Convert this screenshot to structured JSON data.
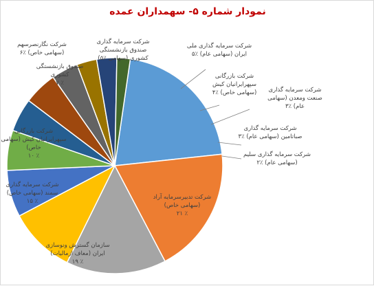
{
  "chart_data": {
    "type": "pie",
    "title": "نمودار شماره ۵- سهمداران عمده",
    "slices": [
      {
        "label": [
          "شرکت تدبیرسرمایه آراد",
          "(سهامی خاص)",
          "٪ ۲۱"
        ],
        "value": 21,
        "color": "#5b9bd5"
      },
      {
        "label": [
          "سازمان گسترش ونوسازی",
          "ایران (معاف ازمالیات)",
          "٪ ۱۹"
        ],
        "value": 19,
        "color": "#ed7d31"
      },
      {
        "label": [
          "شرکت سرمایه گذاری",
          "سمند (سهامی خاص)",
          "٪ ۱۵"
        ],
        "value": 15,
        "color": "#a5a5a5"
      },
      {
        "label": [
          "شرکت بازرگانی",
          "سپهرایرانیان کیش (سهامی",
          "خاص)",
          "٪ ۱۰"
        ],
        "value": 10,
        "color": "#ffc000"
      },
      {
        "label": [
          "صندوق بازنشستگی",
          "کشوری",
          "٪ ۷"
        ],
        "value": 7,
        "color": "#4472c4"
      },
      {
        "label": [
          "شرکت نگارنصرسهم",
          "(سهامی خاص) ٪۶"
        ],
        "value": 6,
        "color": "#70ad47"
      },
      {
        "label": [
          "شرکت سرمایه گذاری",
          "صندوق بازنشستگی",
          "کشوری (سهامی ٪۵)"
        ],
        "value": 5,
        "color": "#255e91"
      },
      {
        "label": [
          "شرکت سرمایه گذاری ملی",
          "ایران (سهامی عام) ٪۵"
        ],
        "value": 5,
        "color": "#9e480e"
      },
      {
        "label": [
          "شرکت بازرگانی",
          "سپهرایرانیان کیش",
          "(سهامی خاص) ٪۴"
        ],
        "value": 4,
        "color": "#636363"
      },
      {
        "label": [
          "شرکت سرمایه گذاری",
          "صنعت ومعدن (سهامی",
          "عام) ٪۳"
        ],
        "value": 3,
        "color": "#997300"
      },
      {
        "label": [
          "شرکت سرمایه گذاری",
          "صباتامین (سهامی عام) ٪۳"
        ],
        "value": 3,
        "color": "#264478"
      },
      {
        "label": [
          "شرکت سرمایه گذاری سلیم",
          "(سهامی عام) ٪۲"
        ],
        "value": 2,
        "color": "#43682b"
      }
    ],
    "legend": "none"
  }
}
